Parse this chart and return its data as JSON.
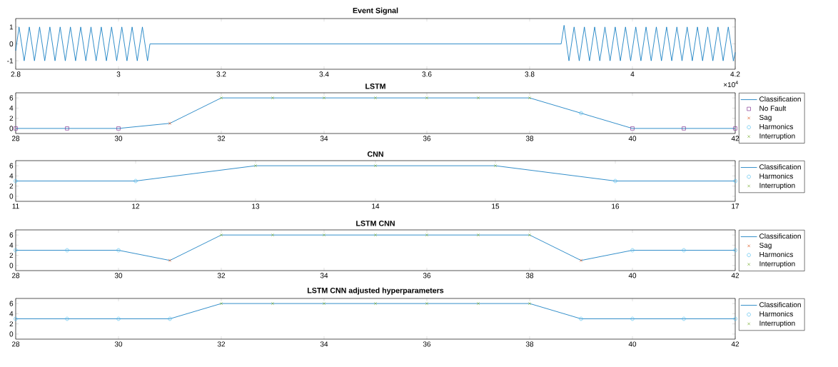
{
  "chart_data": [
    {
      "type": "line",
      "title": "Event Signal",
      "color": "#0072bd",
      "x": [
        2.8,
        2.8065,
        2.8165,
        2.8265,
        2.8365,
        2.8465,
        2.8565,
        2.8665,
        2.8765,
        2.8865,
        2.8965,
        2.9065,
        2.9165,
        2.9265,
        2.9365,
        2.9465,
        2.9565,
        2.9665,
        2.9765,
        2.9865,
        2.9965,
        3.0065,
        3.0165,
        3.0265,
        3.0365,
        3.0465,
        3.0565,
        3.0612,
        3.8613,
        3.867,
        3.8765,
        3.8865,
        3.8965,
        3.9065,
        3.9165,
        3.9265,
        3.9365,
        3.9465,
        3.9565,
        3.9665,
        3.9765,
        3.9865,
        3.9965,
        4.0065,
        4.0165,
        4.0265,
        4.0365,
        4.0465,
        4.0565,
        4.0665,
        4.0765,
        4.0865,
        4.0965,
        4.1065,
        4.1165,
        4.1265,
        4.1365,
        4.1465,
        4.1565,
        4.1665,
        4.1765,
        4.1865,
        4.1965,
        4.2
      ],
      "values": [
        -0.4,
        1,
        -1,
        1,
        -1,
        1,
        -1,
        1,
        -1,
        1,
        -1,
        1,
        -1,
        1,
        -1,
        1,
        -1,
        1,
        -1,
        1,
        -1,
        1,
        -1,
        1,
        -1,
        1,
        -1,
        0,
        0,
        1.1,
        -1,
        1,
        -1,
        1,
        -1,
        1,
        -1,
        1,
        -1,
        1,
        -1,
        1,
        -1,
        1,
        -1,
        1,
        -1,
        1,
        -1,
        1,
        -1,
        1,
        -1,
        1,
        -1,
        1,
        -1,
        1,
        -1,
        1,
        -1,
        1,
        -1,
        -0.5
      ],
      "xlim": [
        2.8,
        4.2
      ],
      "xticks": [
        2.8,
        3,
        3.2,
        3.4,
        3.6,
        3.8,
        4,
        4.2
      ],
      "ylim": [
        -1.5,
        1.5
      ],
      "yticks": [
        -1,
        0,
        1
      ],
      "annotations": [
        "×10$^{4}$"
      ]
    },
    {
      "type": "line",
      "title": "LSTM",
      "legend": "right",
      "xlim": [
        28,
        42
      ],
      "xticks": [
        28,
        30,
        32,
        34,
        36,
        38,
        40,
        42
      ],
      "ylim": [
        -1,
        7
      ],
      "yticks": [
        0,
        2,
        4,
        6
      ],
      "series": [
        {
          "name": "Classification",
          "color": "#0072bd",
          "x": [
            28,
            29,
            30,
            31,
            32,
            33,
            34,
            35,
            36,
            37,
            38,
            39,
            40,
            41,
            42
          ],
          "values": [
            0,
            0,
            0,
            1,
            6,
            6,
            6,
            6,
            6,
            6,
            6,
            3,
            0,
            0,
            0
          ]
        },
        {
          "name": "No Fault",
          "type": "scatter",
          "marker": "square",
          "color": "#7e2f8e",
          "x": [
            28,
            29,
            30,
            40,
            41,
            42
          ],
          "values": [
            0,
            0,
            0,
            0,
            0,
            0
          ]
        },
        {
          "name": "Sag",
          "type": "scatter",
          "marker": "cross",
          "color": "#d95319",
          "x": [
            31
          ],
          "values": [
            1
          ]
        },
        {
          "name": "Harmonics",
          "type": "scatter",
          "marker": "circle",
          "color": "#4dbeee",
          "x": [
            39
          ],
          "values": [
            3
          ]
        },
        {
          "name": "Interruption",
          "type": "scatter",
          "marker": "cross",
          "color": "#77ac30",
          "x": [
            32,
            33,
            34,
            35,
            36,
            37,
            38
          ],
          "values": [
            6,
            6,
            6,
            6,
            6,
            6,
            6
          ]
        }
      ]
    },
    {
      "type": "line",
      "title": "CNN",
      "legend": "right",
      "xlim": [
        11,
        17
      ],
      "xticks": [
        11,
        12,
        13,
        14,
        15,
        16,
        17
      ],
      "ylim": [
        -1,
        7
      ],
      "yticks": [
        0,
        2,
        4,
        6
      ],
      "series": [
        {
          "name": "Classification",
          "color": "#0072bd",
          "x": [
            11,
            12,
            13,
            14,
            15,
            16,
            17
          ],
          "values": [
            3,
            3,
            6,
            6,
            6,
            3,
            3
          ]
        },
        {
          "name": "Harmonics",
          "type": "scatter",
          "marker": "circle",
          "color": "#4dbeee",
          "x": [
            11,
            12,
            16,
            17
          ],
          "values": [
            3,
            3,
            3,
            3
          ]
        },
        {
          "name": "Interruption",
          "type": "scatter",
          "marker": "cross",
          "color": "#77ac30",
          "x": [
            13,
            14,
            15
          ],
          "values": [
            6,
            6,
            6
          ]
        }
      ]
    },
    {
      "type": "line",
      "title": "LSTM CNN",
      "legend": "right",
      "xlim": [
        28,
        42
      ],
      "xticks": [
        28,
        30,
        32,
        34,
        36,
        38,
        40,
        42
      ],
      "ylim": [
        -1,
        7
      ],
      "yticks": [
        0,
        2,
        4,
        6
      ],
      "series": [
        {
          "name": "Classification",
          "color": "#0072bd",
          "x": [
            28,
            29,
            30,
            31,
            32,
            33,
            34,
            35,
            36,
            37,
            38,
            39,
            40,
            41,
            42
          ],
          "values": [
            3,
            3,
            3,
            1,
            6,
            6,
            6,
            6,
            6,
            6,
            6,
            1,
            3,
            3,
            3
          ]
        },
        {
          "name": "Sag",
          "type": "scatter",
          "marker": "cross",
          "color": "#d95319",
          "x": [
            31,
            39
          ],
          "values": [
            1,
            1
          ]
        },
        {
          "name": "Harmonics",
          "type": "scatter",
          "marker": "circle",
          "color": "#4dbeee",
          "x": [
            28,
            29,
            30,
            40,
            41,
            42
          ],
          "values": [
            3,
            3,
            3,
            3,
            3,
            3
          ]
        },
        {
          "name": "Interruption",
          "type": "scatter",
          "marker": "cross",
          "color": "#77ac30",
          "x": [
            32,
            33,
            34,
            35,
            36,
            37,
            38
          ],
          "values": [
            6,
            6,
            6,
            6,
            6,
            6,
            6
          ]
        }
      ]
    },
    {
      "type": "line",
      "title": "LSTM CNN adjusted hyperparameters",
      "legend": "right",
      "xlim": [
        28,
        42
      ],
      "xticks": [
        28,
        30,
        32,
        34,
        36,
        38,
        40,
        42
      ],
      "ylim": [
        -1,
        7
      ],
      "yticks": [
        0,
        2,
        4,
        6
      ],
      "series": [
        {
          "name": "Classification",
          "color": "#0072bd",
          "x": [
            28,
            29,
            30,
            31,
            32,
            33,
            34,
            35,
            36,
            37,
            38,
            39,
            40,
            41,
            42
          ],
          "values": [
            3,
            3,
            3,
            3,
            6,
            6,
            6,
            6,
            6,
            6,
            6,
            3,
            3,
            3,
            3
          ]
        },
        {
          "name": "Harmonics",
          "type": "scatter",
          "marker": "circle",
          "color": "#4dbeee",
          "x": [
            28,
            29,
            30,
            31,
            39,
            40,
            41,
            42
          ],
          "values": [
            3,
            3,
            3,
            3,
            3,
            3,
            3,
            3
          ]
        },
        {
          "name": "Interruption",
          "type": "scatter",
          "marker": "cross",
          "color": "#77ac30",
          "x": [
            32,
            33,
            34,
            35,
            36,
            37,
            38
          ],
          "values": [
            6,
            6,
            6,
            6,
            6,
            6,
            6
          ]
        }
      ]
    }
  ]
}
